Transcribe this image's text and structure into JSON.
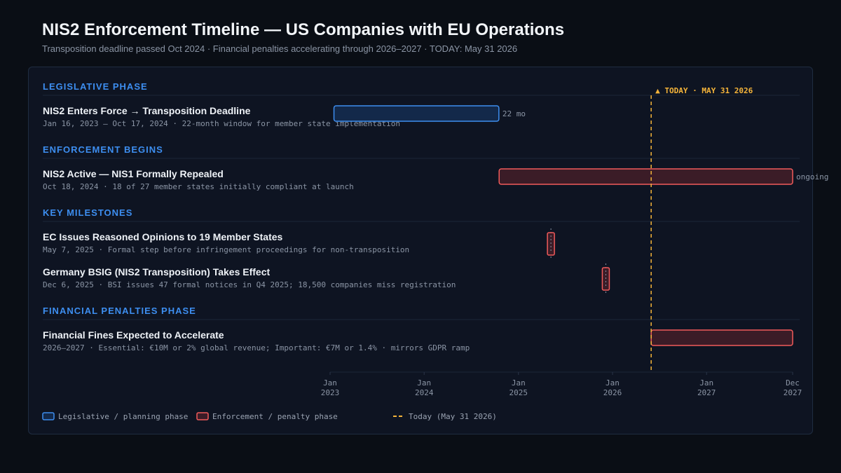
{
  "header": {
    "title": "NIS2 Enforcement Timeline — US Companies with EU Operations",
    "subtitle": "Transposition deadline passed Oct 2024 · Financial penalties accelerating through 2026–2027 · TODAY: May 31 2026"
  },
  "colors": {
    "accent": "#3d8ef0",
    "legislative_fill": "#13294a",
    "legislative_stroke": "#3d8ef0",
    "enforcement_fill": "#3b1c27",
    "enforcement_stroke": "#f25b5b",
    "today": "#f5b43a"
  },
  "chart_data": {
    "type": "gantt",
    "x_range": [
      "2023-01-01",
      "2027-12-01"
    ],
    "x_ticks": [
      {
        "date": "2023-01-01",
        "line1": "Jan",
        "line2": "2023"
      },
      {
        "date": "2024-01-01",
        "line1": "Jan",
        "line2": "2024"
      },
      {
        "date": "2025-01-01",
        "line1": "Jan",
        "line2": "2025"
      },
      {
        "date": "2026-01-01",
        "line1": "Jan",
        "line2": "2026"
      },
      {
        "date": "2027-01-01",
        "line1": "Jan",
        "line2": "2027"
      },
      {
        "date": "2027-12-01",
        "line1": "Dec",
        "line2": "2027"
      }
    ],
    "today": {
      "date": "2026-05-31",
      "label": "▲ TODAY · MAY 31 2026"
    },
    "sections": [
      {
        "label": "LEGISLATIVE PHASE",
        "rows": [
          {
            "title": "NIS2 Enters Force → Transposition Deadline",
            "desc": "Jan 16, 2023 – Oct 17, 2024 · 22-month window for member state implementation",
            "start": "2023-01-16",
            "end": "2024-10-17",
            "kind": "legislative",
            "bar_label": "22 mo"
          }
        ]
      },
      {
        "label": "ENFORCEMENT BEGINS",
        "rows": [
          {
            "title": "NIS2 Active — NIS1 Formally Repealed",
            "desc": "Oct 18, 2024 · 18 of 27 member states initially compliant at launch",
            "start": "2024-10-18",
            "end": "2027-12-01",
            "kind": "enforcement",
            "bar_label": "ongoing"
          }
        ]
      },
      {
        "label": "KEY MILESTONES",
        "rows": [
          {
            "title": "EC Issues Reasoned Opinions to 19 Member States",
            "desc": "May 7, 2025 · Formal step before infringement proceedings for non-transposition",
            "start": "2025-05-07",
            "kind": "milestone"
          },
          {
            "title": "Germany BSIG (NIS2 Transposition) Takes Effect",
            "desc": "Dec 6, 2025 · BSI issues 47 formal notices in Q4 2025; 18,500 companies miss registration",
            "start": "2025-12-06",
            "kind": "milestone"
          }
        ]
      },
      {
        "label": "FINANCIAL PENALTIES PHASE",
        "rows": [
          {
            "title": "Financial Fines Expected to Accelerate",
            "desc": "2026–2027 · Essential: €10M or 2% global revenue; Important: €7M or 1.4% · mirrors GDPR ramp",
            "start": "2026-05-31",
            "end": "2027-12-01",
            "kind": "enforcement"
          }
        ]
      }
    ],
    "legend": [
      {
        "label": "Legislative / planning phase",
        "kind": "legislative"
      },
      {
        "label": "Enforcement / penalty phase",
        "kind": "enforcement"
      },
      {
        "label": "Today (May 31 2026)",
        "kind": "today"
      }
    ]
  }
}
